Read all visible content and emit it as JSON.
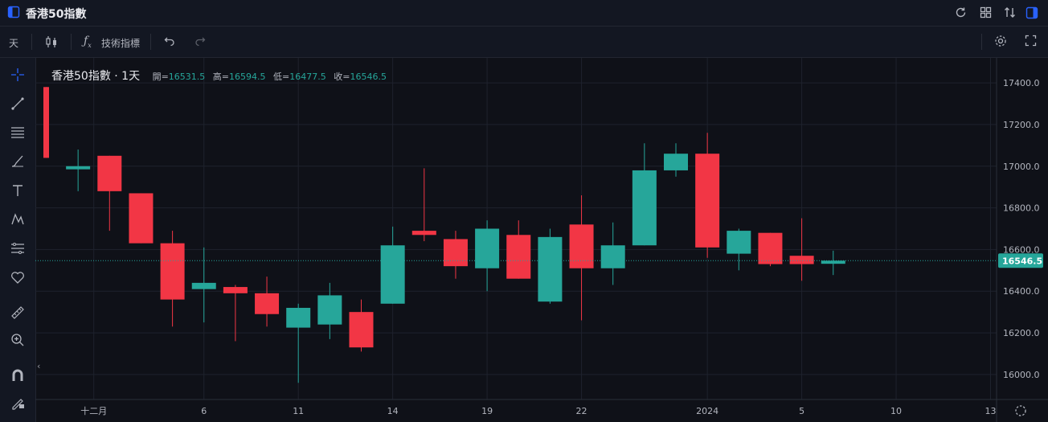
{
  "header": {
    "title": "香港50指數",
    "icons": [
      "panel-icon",
      "refresh-icon",
      "grid-icon",
      "compare-icon",
      "layout-icon"
    ]
  },
  "toolbar": {
    "interval": "天",
    "indicators_label": "技術指標"
  },
  "legend": {
    "symbol": "香港50指數 · 1天",
    "open_label": "開=",
    "open": "16531.5",
    "high_label": "高=",
    "high": "16594.5",
    "low_label": "低=",
    "low": "16477.5",
    "close_label": "收=",
    "close": "16546.5"
  },
  "colors": {
    "up": "#26a69a",
    "down": "#f23645",
    "grid": "#1e222d",
    "price_tag": "#26a69a"
  },
  "chart_data": {
    "type": "candlestick",
    "ylim": [
      15880,
      17520
    ],
    "y_ticks": [
      16000,
      16200,
      16400,
      16600,
      16800,
      17000,
      17200,
      17400
    ],
    "last_price": 16546.5,
    "last_price_label": "16546.5",
    "x_labels": [
      {
        "label": "十二月",
        "index": 1.5
      },
      {
        "label": "6",
        "index": 5
      },
      {
        "label": "11",
        "index": 8
      },
      {
        "label": "14",
        "index": 11
      },
      {
        "label": "19",
        "index": 14
      },
      {
        "label": "22",
        "index": 17
      },
      {
        "label": "2024",
        "index": 21
      },
      {
        "label": "5",
        "index": 24
      },
      {
        "label": "10",
        "index": 27
      },
      {
        "label": "13",
        "index": 30
      }
    ],
    "candles": [
      {
        "o": 17380,
        "h": 17380,
        "l": 17040,
        "c": 17040
      },
      {
        "o": 16985,
        "h": 17080,
        "l": 16880,
        "c": 17000
      },
      {
        "o": 17050,
        "h": 17050,
        "l": 16690,
        "c": 16880
      },
      {
        "o": 16870,
        "h": 16870,
        "l": 16630,
        "c": 16630
      },
      {
        "o": 16630,
        "h": 16690,
        "l": 16230,
        "c": 16360
      },
      {
        "o": 16410,
        "h": 16610,
        "l": 16250,
        "c": 16440
      },
      {
        "o": 16420,
        "h": 16430,
        "l": 16160,
        "c": 16390
      },
      {
        "o": 16390,
        "h": 16470,
        "l": 16230,
        "c": 16290
      },
      {
        "o": 16225,
        "h": 16340,
        "l": 15960,
        "c": 16320
      },
      {
        "o": 16240,
        "h": 16440,
        "l": 16170,
        "c": 16380
      },
      {
        "o": 16300,
        "h": 16360,
        "l": 16110,
        "c": 16130
      },
      {
        "o": 16340,
        "h": 16710,
        "l": 16340,
        "c": 16620
      },
      {
        "o": 16690,
        "h": 16990,
        "l": 16640,
        "c": 16670
      },
      {
        "o": 16650,
        "h": 16690,
        "l": 16460,
        "c": 16520
      },
      {
        "o": 16510,
        "h": 16740,
        "l": 16400,
        "c": 16700
      },
      {
        "o": 16670,
        "h": 16740,
        "l": 16460,
        "c": 16460
      },
      {
        "o": 16350,
        "h": 16700,
        "l": 16340,
        "c": 16660
      },
      {
        "o": 16720,
        "h": 16860,
        "l": 16260,
        "c": 16510
      },
      {
        "o": 16510,
        "h": 16730,
        "l": 16430,
        "c": 16620
      },
      {
        "o": 16620,
        "h": 17110,
        "l": 16620,
        "c": 16980
      },
      {
        "o": 16980,
        "h": 17110,
        "l": 16950,
        "c": 17060
      },
      {
        "o": 17060,
        "h": 17160,
        "l": 16560,
        "c": 16610
      },
      {
        "o": 16580,
        "h": 16700,
        "l": 16500,
        "c": 16690
      },
      {
        "o": 16680,
        "h": 16680,
        "l": 16520,
        "c": 16530
      },
      {
        "o": 16570,
        "h": 16750,
        "l": 16450,
        "c": 16530
      },
      {
        "o": 16531.5,
        "h": 16594.5,
        "l": 16477.5,
        "c": 16546.5
      }
    ]
  }
}
